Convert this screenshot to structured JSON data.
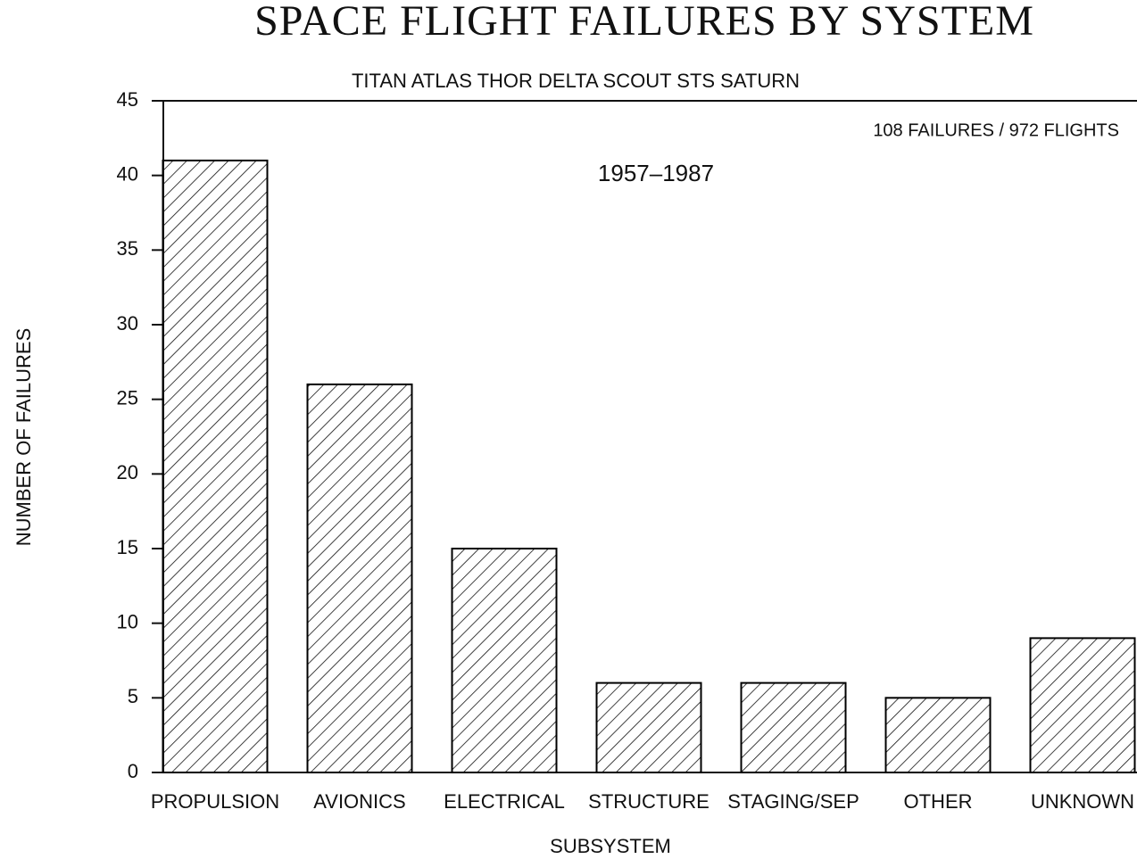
{
  "chart_data": {
    "type": "bar",
    "title": "SPACE FLIGHT FAILURES BY SYSTEM",
    "subtitle": "TITAN ATLAS THOR DELTA SCOUT STS SATURN",
    "annotations": [
      "108 FAILURES / 972 FLIGHTS",
      "1957–1987"
    ],
    "x_label": "SUBSYSTEM",
    "y_label": "NUMBER OF FAILURES",
    "categories": [
      "PROPULSION",
      "AVIONICS",
      "ELECTRICAL",
      "STRUCTURE",
      "STAGING/SEP",
      "OTHER",
      "UNKNOWN"
    ],
    "values": [
      41,
      26,
      15,
      6,
      6,
      5,
      9
    ],
    "color": "#000000",
    "ylim": [
      0,
      45
    ],
    "yticks": [
      0,
      5,
      10,
      15,
      20,
      25,
      30,
      35,
      40,
      45
    ],
    "grid": false
  }
}
